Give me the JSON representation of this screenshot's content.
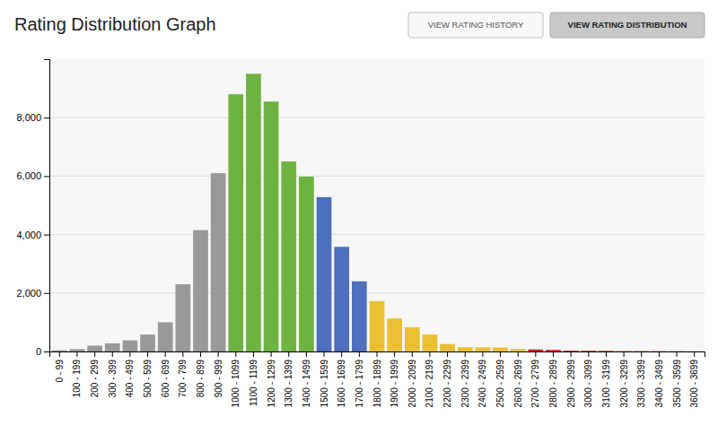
{
  "chart_data": {
    "type": "bar",
    "title": "Rating Distribution Graph",
    "annotations": [
      "VIEW RATING HISTORY",
      "VIEW RATING DISTRIBUTION"
    ],
    "categories": [
      "0 - 99",
      "100 - 199",
      "200 - 299",
      "300 - 399",
      "400 - 499",
      "500 - 599",
      "600 - 699",
      "700 - 799",
      "800 - 899",
      "900 - 999",
      "1000 - 1099",
      "1100 - 1199",
      "1200 - 1299",
      "1300 - 1399",
      "1400 - 1499",
      "1500 - 1599",
      "1600 - 1699",
      "1700 - 1799",
      "1800 - 1899",
      "1900 - 1999",
      "2000 - 2099",
      "2100 - 2199",
      "2200 - 2299",
      "2300 - 2399",
      "2400 - 2499",
      "2500 - 2599",
      "2600 - 2699",
      "2700 - 2799",
      "2800 - 2899",
      "2900 - 2999",
      "3000 - 3099",
      "3100 - 3199",
      "3200 - 3299",
      "3300 - 3399",
      "3400 - 3499",
      "3500 - 3599",
      "3600 - 3699"
    ],
    "values": [
      40,
      80,
      200,
      280,
      380,
      580,
      1000,
      2300,
      4150,
      6100,
      8800,
      9500,
      8550,
      6500,
      5980,
      5280,
      3580,
      2400,
      1720,
      1130,
      830,
      580,
      255,
      145,
      140,
      135,
      85,
      70,
      55,
      28,
      22,
      18,
      10,
      9,
      7,
      5,
      3
    ],
    "colors": [
      "#999999",
      "#999999",
      "#999999",
      "#999999",
      "#999999",
      "#999999",
      "#999999",
      "#999999",
      "#999999",
      "#999999",
      "#6db33f",
      "#6db33f",
      "#6db33f",
      "#6db33f",
      "#6db33f",
      "#4e6fbd",
      "#4e6fbd",
      "#4e6fbd",
      "#e8c030",
      "#e8c030",
      "#e8c030",
      "#e8c030",
      "#e8c030",
      "#e8c030",
      "#e8c030",
      "#e8c030",
      "#e8c030",
      "#cc2222",
      "#cc2222",
      "#cc2222",
      "#cc2222",
      "#cc2222",
      "#cc2222",
      "#cc2222",
      "#cc2222",
      "#cc2222",
      "#cc2222"
    ],
    "ylim": [
      0,
      10000
    ],
    "yticks": [
      0,
      {
        "value": 2000,
        "label": "2,000"
      },
      {
        "value": 4000,
        "label": "4,000"
      },
      {
        "value": 6000,
        "label": "6,000"
      },
      {
        "value": 8000,
        "label": "8,000"
      }
    ],
    "grid": true
  }
}
